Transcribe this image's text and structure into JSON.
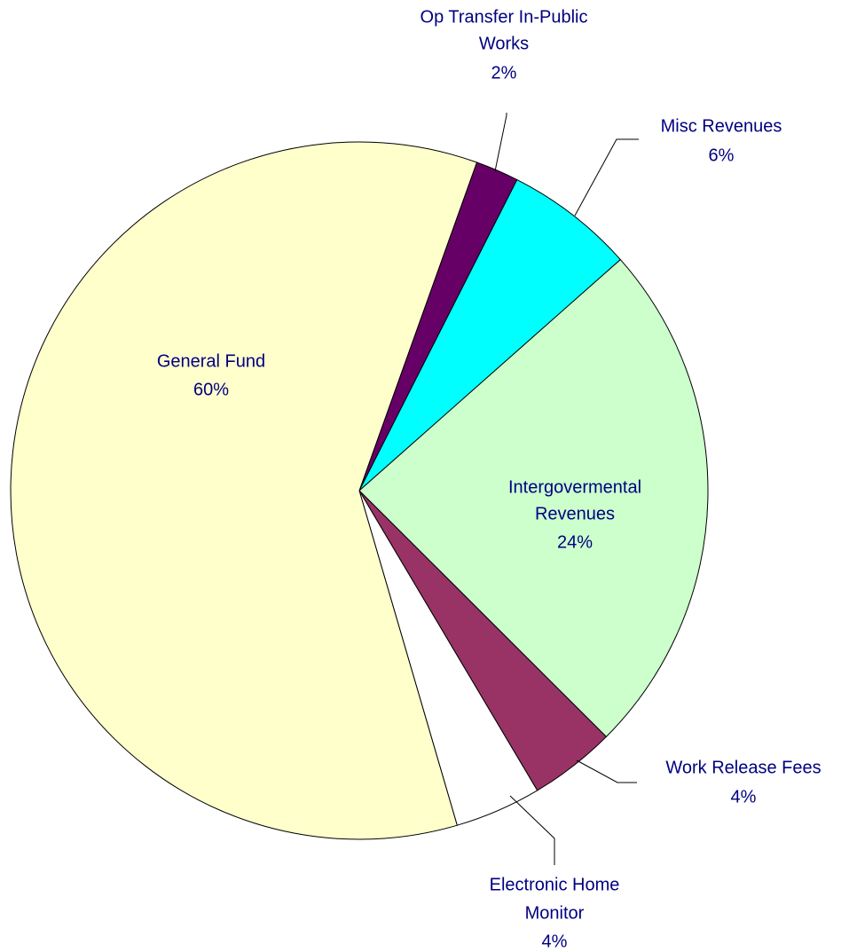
{
  "chart_data": {
    "type": "pie",
    "categories": [
      [
        "Op Transfer In-Public",
        "Works"
      ],
      [
        "Misc Revenues"
      ],
      [
        "Intergovermental",
        "Revenues"
      ],
      [
        "Work Release Fees"
      ],
      [
        "Electronic Home",
        "Monitor"
      ],
      [
        "General Fund"
      ]
    ],
    "values": [
      2,
      6,
      24,
      4,
      4,
      60
    ],
    "value_labels": [
      "2%",
      "6%",
      "24%",
      "4%",
      "4%",
      "60%"
    ],
    "colors": [
      "#660066",
      "#00ffff",
      "#ccffcc",
      "#993366",
      "#ffffff",
      "#ffffcc"
    ]
  }
}
